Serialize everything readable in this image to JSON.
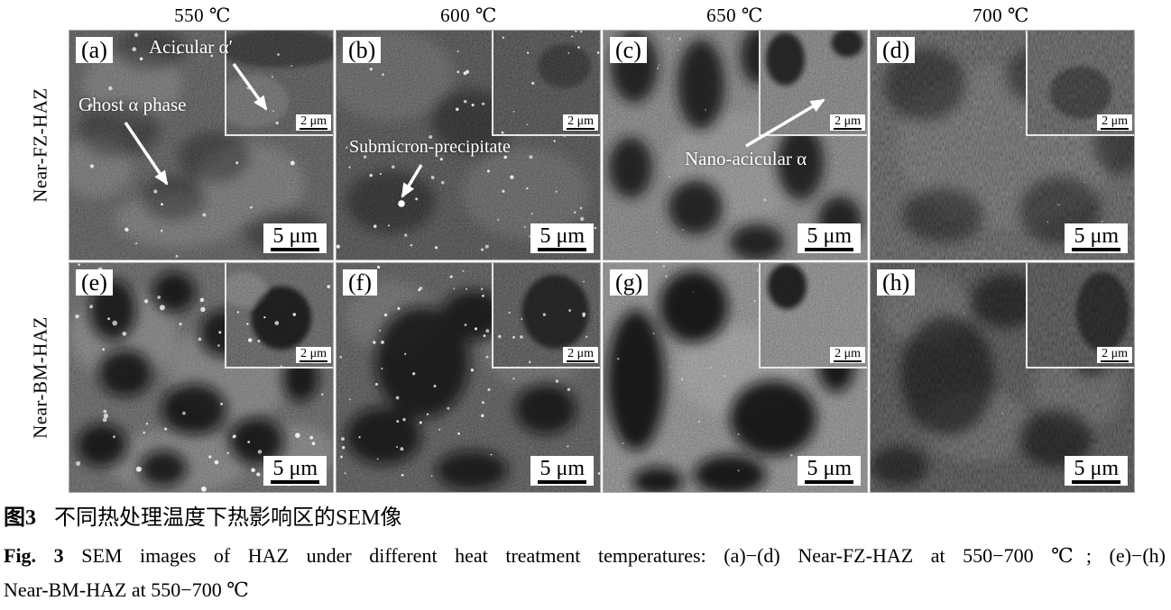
{
  "figure": {
    "temperature_headers": [
      "550 ℃",
      "600 ℃",
      "650 ℃",
      "700 ℃"
    ],
    "row_labels": [
      "Near-FZ-HAZ",
      "Near-BM-HAZ"
    ],
    "panels": [
      {
        "label": "(a)",
        "temperature": "550 ℃",
        "region": "Near-FZ-HAZ",
        "scale_bar": "5 μm",
        "inset_scale_bar": "2 μm",
        "annotations": [
          "Acicular α′",
          "Ghost α phase"
        ]
      },
      {
        "label": "(b)",
        "temperature": "600 ℃",
        "region": "Near-FZ-HAZ",
        "scale_bar": "5 μm",
        "inset_scale_bar": "2 μm",
        "annotations": [
          "Submicron-precipitate"
        ]
      },
      {
        "label": "(c)",
        "temperature": "650 ℃",
        "region": "Near-FZ-HAZ",
        "scale_bar": "5 μm",
        "inset_scale_bar": "2 μm",
        "annotations": [
          "Nano-acicular α"
        ]
      },
      {
        "label": "(d)",
        "temperature": "700 ℃",
        "region": "Near-FZ-HAZ",
        "scale_bar": "5 μm",
        "inset_scale_bar": "2 μm",
        "annotations": []
      },
      {
        "label": "(e)",
        "temperature": "550 ℃",
        "region": "Near-BM-HAZ",
        "scale_bar": "5 μm",
        "inset_scale_bar": "2 μm",
        "annotations": []
      },
      {
        "label": "(f)",
        "temperature": "600 ℃",
        "region": "Near-BM-HAZ",
        "scale_bar": "5 μm",
        "inset_scale_bar": "2 μm",
        "annotations": []
      },
      {
        "label": "(g)",
        "temperature": "650 ℃",
        "region": "Near-BM-HAZ",
        "scale_bar": "5 μm",
        "inset_scale_bar": "2 μm",
        "annotations": []
      },
      {
        "label": "(h)",
        "temperature": "700 ℃",
        "region": "Near-BM-HAZ",
        "scale_bar": "5 μm",
        "inset_scale_bar": "2 μm",
        "annotations": []
      }
    ]
  },
  "caption": {
    "zh_label": "图3",
    "zh_text": "不同热处理温度下热影响区的SEM像",
    "en_label": "Fig. 3",
    "en_line1": "SEM images of HAZ under different heat treatment temperatures: (a)−(d) Near-FZ-HAZ at 550−700 ℃; (e)−(h)",
    "en_line2": "Near-BM-HAZ at 550−700 ℃"
  },
  "colors": {
    "page_background": "#ffffff",
    "annotation_text": "#ffffff",
    "label_box_background": "#ffffff",
    "label_text": "#000000"
  }
}
